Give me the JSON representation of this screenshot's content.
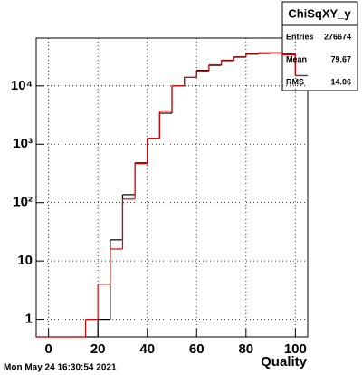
{
  "chart_data": {
    "type": "histogram",
    "log_y": true,
    "grid": true,
    "bins": [
      -5,
      0,
      5,
      10,
      15,
      20,
      25,
      30,
      35,
      40,
      45,
      50,
      55,
      60,
      65,
      70,
      75,
      80,
      85,
      90,
      95,
      100,
      105
    ],
    "series": [
      {
        "color": "#000000",
        "values": [
          0,
          0,
          0,
          0,
          0,
          1,
          23,
          137,
          480,
          1260,
          3400,
          10000,
          14000,
          18500,
          22500,
          27500,
          31500,
          35000,
          36000,
          36500,
          35000,
          15000
        ]
      },
      {
        "color": "#e00000",
        "values": [
          0,
          0,
          0,
          0,
          1,
          4,
          16,
          115,
          465,
          1260,
          3700,
          10000,
          14000,
          18000,
          23000,
          27000,
          31000,
          36000,
          37000,
          37000,
          34000,
          15000
        ]
      }
    ],
    "xlim": [
      -5,
      105
    ],
    "xticks": [
      0,
      20,
      40,
      60,
      80,
      100
    ],
    "ylim": [
      0.5,
      66000
    ],
    "yticks": [
      1,
      10,
      {
        "value": 100,
        "label": "10²"
      },
      {
        "value": 1000,
        "label": "10³"
      },
      {
        "value": 10000,
        "label": "10⁴"
      }
    ],
    "x_label": "Quality",
    "timestamp": "Mon May 24 16:30:54 2021",
    "stats": {
      "title": "ChiSqXY_y",
      "rows": [
        [
          "Entries",
          "276674"
        ],
        [
          "Mean",
          "79.67"
        ],
        [
          "RMS",
          "14.06"
        ]
      ]
    }
  }
}
